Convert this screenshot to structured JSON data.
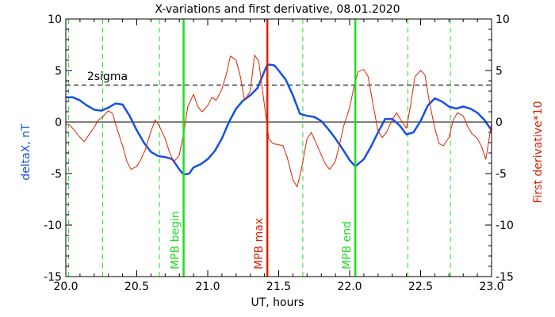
{
  "chart_data": {
    "type": "line",
    "title": "X-variations and first derivative, 08.01.2020",
    "xlabel": "UT, hours",
    "ylabel_left": "deltaX, nT",
    "ylabel_right": "First derivative*10",
    "xlim": [
      20.0,
      23.0
    ],
    "ylim": [
      -15,
      10
    ],
    "x_ticks": [
      20.0,
      20.5,
      21.0,
      21.5,
      22.0,
      22.5,
      23.0
    ],
    "x_tick_labels": [
      "20.0",
      "20.5",
      "21.0",
      "21.5",
      "22.0",
      "22.5",
      "23.0"
    ],
    "y_ticks": [
      10,
      5,
      0,
      -5,
      -10,
      -15
    ],
    "y_tick_labels": [
      "10",
      "5",
      "0",
      "-5",
      "-10",
      "-15"
    ],
    "y_right_tick_labels": [
      "10",
      "5",
      "0",
      "-5",
      "-10",
      "-15"
    ],
    "zero_line": 0,
    "sigma_line": {
      "y": 3.6,
      "label": "2sigma"
    },
    "green_dashed_x": [
      20.02,
      20.26,
      20.66,
      21.67,
      22.41,
      22.71
    ],
    "markers": [
      {
        "x": 20.83,
        "label": "MPB begin",
        "color": "#22dd22"
      },
      {
        "x": 21.42,
        "label": "MPB max",
        "color": "#dd2200"
      },
      {
        "x": 22.04,
        "label": "MPB end",
        "color": "#22dd22"
      }
    ],
    "series": [
      {
        "color": "#1450e6",
        "x": [
          20.0,
          20.05,
          20.1,
          20.15,
          20.2,
          20.25,
          20.3,
          20.35,
          20.4,
          20.45,
          20.5,
          20.55,
          20.6,
          20.65,
          20.7,
          20.75,
          20.8,
          20.83,
          20.87,
          20.9,
          20.95,
          21.0,
          21.05,
          21.1,
          21.15,
          21.2,
          21.25,
          21.3,
          21.35,
          21.42,
          21.47,
          21.5,
          21.55,
          21.6,
          21.65,
          21.7,
          21.75,
          21.8,
          21.85,
          21.9,
          21.95,
          22.0,
          22.04,
          22.1,
          22.15,
          22.2,
          22.25,
          22.3,
          22.35,
          22.4,
          22.45,
          22.5,
          22.55,
          22.6,
          22.65,
          22.7,
          22.75,
          22.8,
          22.85,
          22.9,
          22.95,
          23.0
        ],
        "y": [
          2.4,
          2.4,
          2.1,
          1.6,
          1.2,
          1.1,
          1.4,
          1.8,
          1.7,
          0.6,
          -0.8,
          -2.0,
          -2.9,
          -3.3,
          -3.4,
          -3.6,
          -4.6,
          -5.1,
          -5.0,
          -4.4,
          -4.1,
          -3.6,
          -2.8,
          -1.6,
          0.0,
          1.3,
          2.1,
          2.6,
          3.3,
          5.6,
          5.5,
          5.0,
          4.1,
          2.6,
          0.8,
          0.6,
          0.5,
          0.1,
          -0.7,
          -1.6,
          -2.6,
          -3.7,
          -4.3,
          -3.6,
          -2.4,
          -1.0,
          0.3,
          0.3,
          -0.3,
          -1.2,
          -1.0,
          0.1,
          1.6,
          2.3,
          2.0,
          1.5,
          1.3,
          1.5,
          1.3,
          0.9,
          0.2,
          -0.8
        ]
      },
      {
        "color": "#dd2200",
        "x": [
          20.0,
          20.03,
          20.06,
          20.1,
          20.13,
          20.16,
          20.2,
          20.23,
          20.26,
          20.3,
          20.33,
          20.36,
          20.4,
          20.43,
          20.46,
          20.5,
          20.53,
          20.56,
          20.6,
          20.63,
          20.66,
          20.7,
          20.73,
          20.76,
          20.8,
          20.83,
          20.86,
          20.9,
          20.93,
          20.96,
          21.0,
          21.03,
          21.06,
          21.1,
          21.13,
          21.16,
          21.2,
          21.23,
          21.26,
          21.3,
          21.33,
          21.36,
          21.4,
          21.43,
          21.46,
          21.5,
          21.53,
          21.56,
          21.6,
          21.63,
          21.66,
          21.7,
          21.73,
          21.76,
          21.8,
          21.83,
          21.86,
          21.9,
          21.93,
          21.96,
          22.0,
          22.03,
          22.06,
          22.1,
          22.13,
          22.16,
          22.2,
          22.23,
          22.26,
          22.3,
          22.33,
          22.36,
          22.4,
          22.43,
          22.46,
          22.5,
          22.53,
          22.56,
          22.6,
          22.63,
          22.66,
          22.7,
          22.73,
          22.76,
          22.8,
          22.83,
          22.86,
          22.9,
          22.93,
          22.96,
          23.0
        ],
        "y": [
          -0.2,
          -0.3,
          -0.8,
          -1.5,
          -1.9,
          -1.3,
          -0.5,
          0.2,
          0.5,
          1.1,
          0.8,
          -0.6,
          -2.3,
          -3.8,
          -4.6,
          -4.3,
          -3.6,
          -2.7,
          -0.9,
          0.2,
          -0.4,
          -1.6,
          -2.9,
          -3.9,
          -3.2,
          -1.1,
          1.5,
          2.7,
          1.5,
          1.0,
          1.6,
          2.4,
          2.1,
          3.2,
          4.6,
          6.4,
          6.0,
          4.4,
          2.1,
          3.0,
          6.5,
          5.9,
          1.6,
          -1.6,
          -2.1,
          -2.2,
          -2.3,
          -3.4,
          -5.6,
          -6.3,
          -4.6,
          -1.6,
          -1.0,
          -1.9,
          -3.2,
          -4.1,
          -4.6,
          -3.8,
          -2.1,
          -0.3,
          1.4,
          3.4,
          4.9,
          5.1,
          4.4,
          2.1,
          -0.9,
          -1.5,
          -1.0,
          0.2,
          0.9,
          0.2,
          -0.6,
          1.7,
          4.4,
          5.0,
          4.6,
          2.1,
          -0.6,
          -2.1,
          -2.3,
          -1.5,
          0.2,
          0.9,
          0.6,
          -0.4,
          -1.1,
          -1.6,
          -2.4,
          -3.6,
          -0.1
        ]
      }
    ]
  }
}
